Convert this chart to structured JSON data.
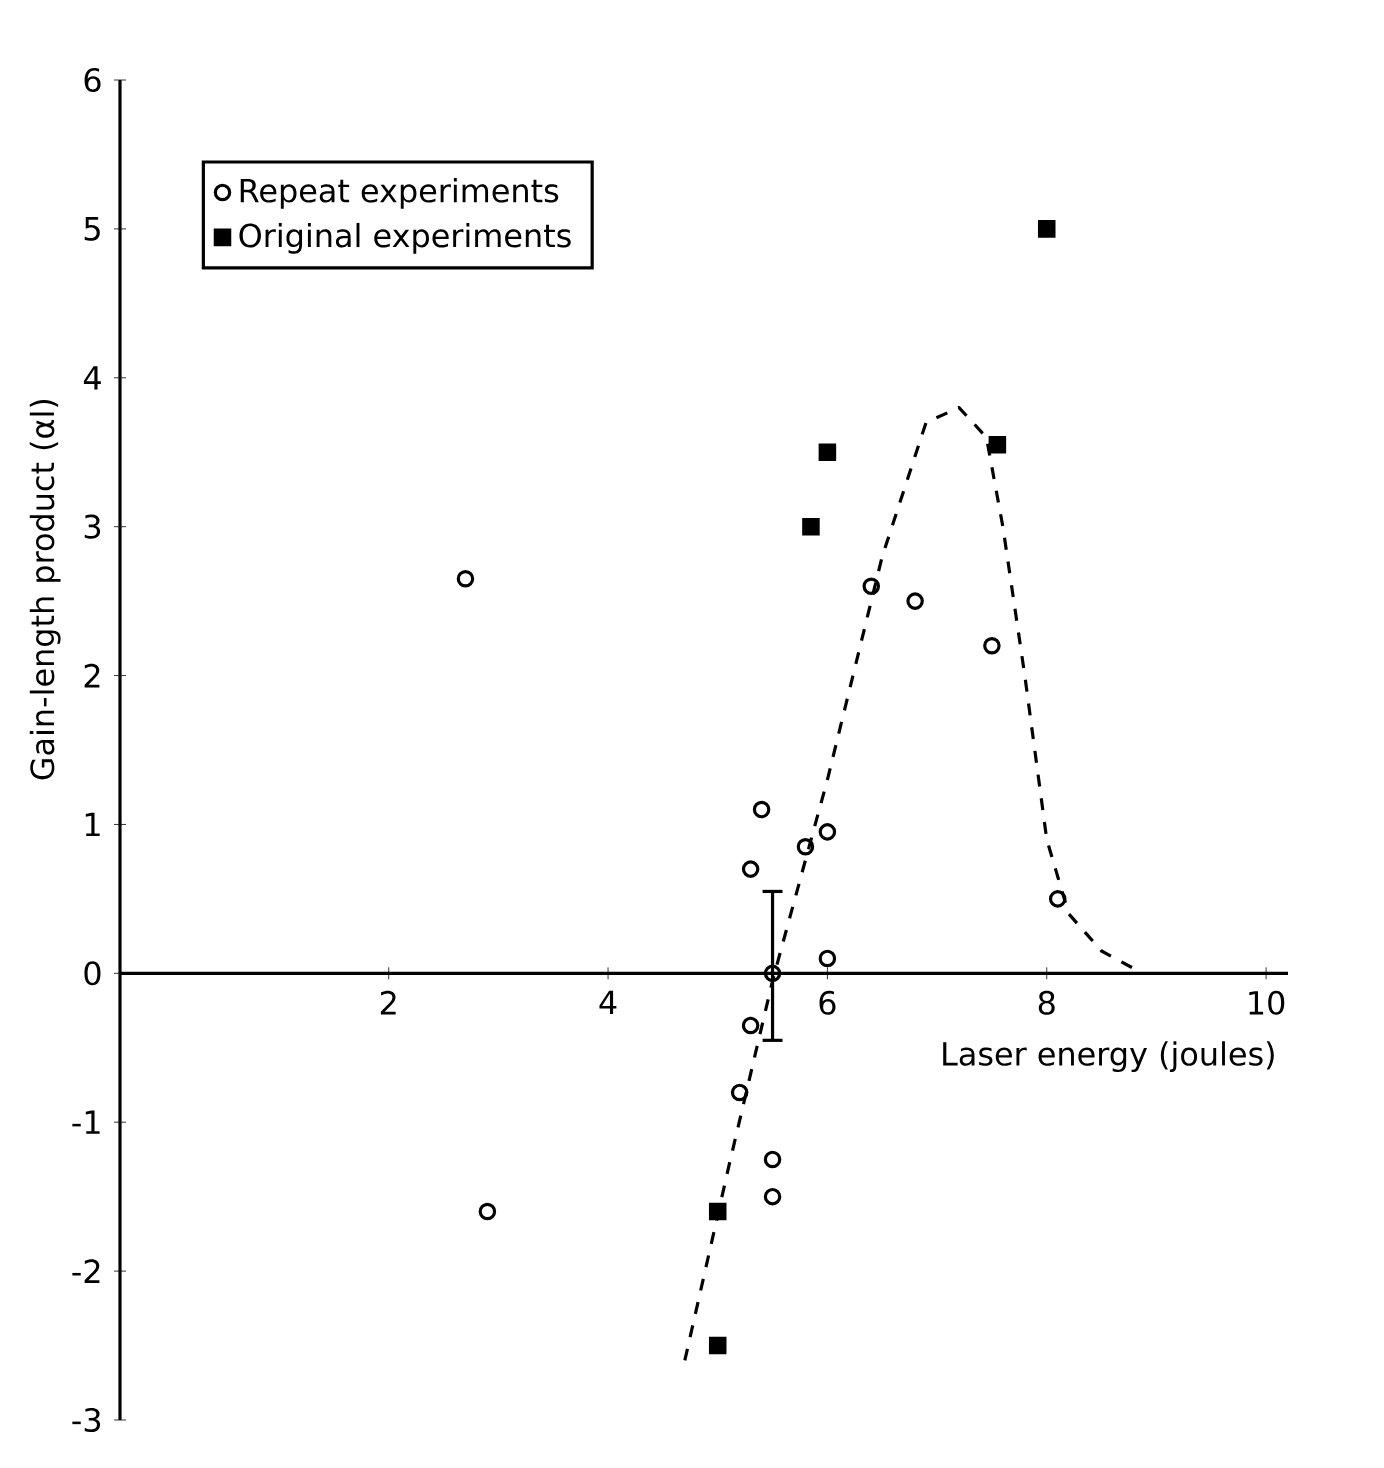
{
  "chart_data": {
    "type": "scatter",
    "xlabel": "Laser energy (joules)",
    "ylabel": "Gain-length product (αl)",
    "xlim": [
      -0.45,
      10.2
    ],
    "ylim": [
      -3,
      6
    ],
    "xticks": [
      2,
      4,
      6,
      8,
      10
    ],
    "yticks": [
      -3,
      -2,
      -1,
      0,
      1,
      2,
      3,
      4,
      5,
      6
    ],
    "legend": "top left",
    "grid": false,
    "series": [
      {
        "name": "Repeat experiments",
        "color": "#000000",
        "marker": "circle",
        "x": [
          2.7,
          2.9,
          5.4,
          5.3,
          5.8,
          6.0,
          6.0,
          5.3,
          5.2,
          5.5,
          5.5,
          6.4,
          6.8,
          7.5,
          8.1,
          5.5
        ],
        "values": [
          2.65,
          -1.6,
          1.1,
          0.7,
          0.85,
          0.95,
          0.1,
          -0.35,
          -0.8,
          -1.25,
          -1.5,
          2.6,
          2.5,
          2.2,
          0.5,
          0
        ],
        "errors": [
          null,
          null,
          null,
          null,
          null,
          null,
          null,
          null,
          null,
          null,
          null,
          null,
          null,
          null,
          null,
          [
            -0.45,
            0.55
          ]
        ]
      },
      {
        "name": "Original experiments",
        "color": "#000000",
        "marker": "square",
        "x": [
          5.0,
          5.0,
          5.85,
          6.0,
          7.55,
          8.0
        ],
        "values": [
          -1.6,
          -2.5,
          3.0,
          3.5,
          3.55,
          5.0
        ]
      },
      {
        "type": "line",
        "color": "#000000",
        "line_style": "dashed",
        "x": [
          4.7,
          5.1,
          5.5,
          6.0,
          6.5,
          6.9,
          7.2,
          7.45,
          7.6,
          7.8,
          8.0,
          8.2,
          8.5,
          8.8
        ],
        "values": [
          -2.6,
          -1.3,
          -0.05,
          1.3,
          2.8,
          3.7,
          3.8,
          3.6,
          3.0,
          2.0,
          0.9,
          0.4,
          0.15,
          0.03
        ]
      }
    ]
  }
}
